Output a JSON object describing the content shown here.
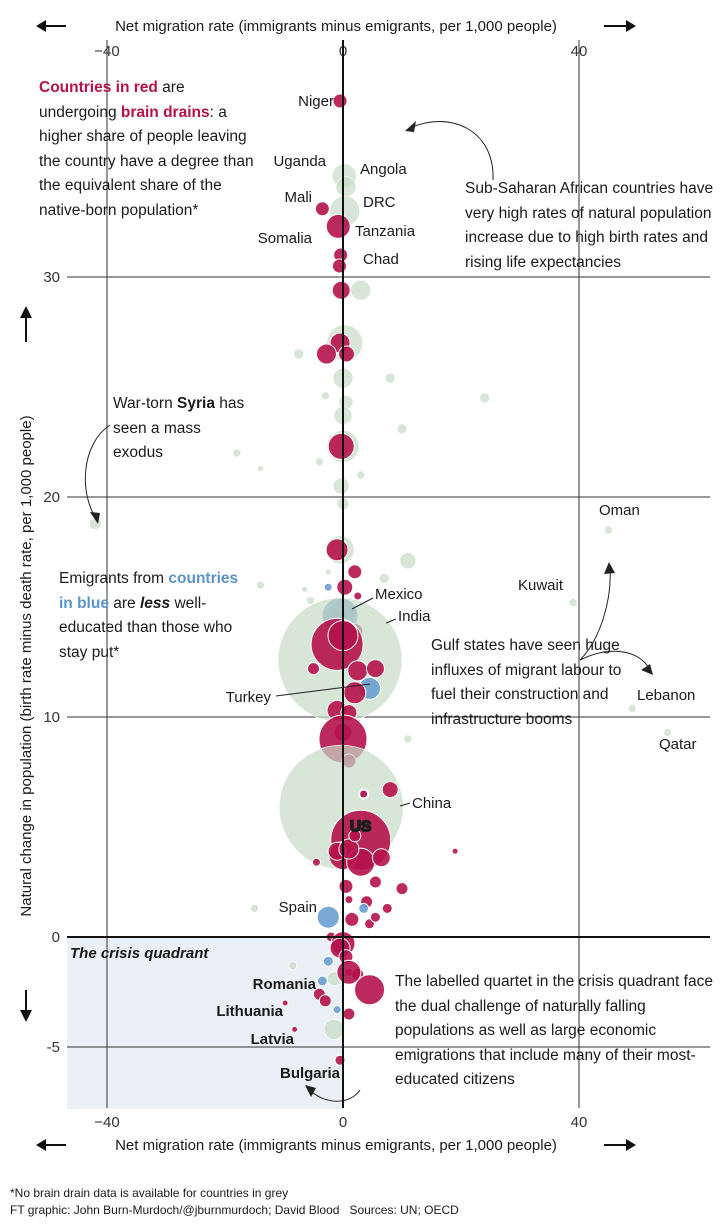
{
  "chart_data": {
    "type": "scatter",
    "xlabel": "Net migration rate (immigrants minus emigrants, per 1,000 people)",
    "ylabel": "Natural change in population (birth rate minus death rate, per 1,000 people)",
    "xlim": [
      -47,
      62
    ],
    "ylim": [
      -7.8,
      37.5
    ],
    "x_ticks": [
      "−40",
      "0",
      "40"
    ],
    "y_ticks": [
      "30",
      "20",
      "10",
      "0",
      "-5"
    ],
    "grid": "major lines at x = -40, 0, 40 and y = -5, 0, 10, 20, 30",
    "crisis_quadrant_label": "The crisis quadrant",
    "legend": {
      "red": "brain drain (higher share of leavers have a degree)",
      "blue": "emigrants less well-educated than those who stay",
      "grey": "no brain drain data"
    },
    "colors": {
      "red": "#b5124a",
      "blue": "#6a9fd0",
      "grey": "#c6dcc6"
    },
    "labelled_points": [
      {
        "name": "Niger",
        "x": -0.5,
        "y": 38.0,
        "group": "red"
      },
      {
        "name": "Uganda",
        "x": 0.0,
        "y": 34.5,
        "group": "grey"
      },
      {
        "name": "Angola",
        "x": 0.5,
        "y": 34.3,
        "group": "grey"
      },
      {
        "name": "Mali",
        "x": -3.5,
        "y": 33.1,
        "group": "red"
      },
      {
        "name": "DRC",
        "x": 0.0,
        "y": 33.0,
        "group": "grey"
      },
      {
        "name": "Tanzania",
        "x": -0.8,
        "y": 32.3,
        "group": "red"
      },
      {
        "name": "Somalia",
        "x": -8.5,
        "y": 31.8,
        "group": "grey"
      },
      {
        "name": "Chad",
        "x": 0.0,
        "y": 31.5,
        "group": "red"
      },
      {
        "name": "Syria",
        "x": -42.0,
        "y": 18.8,
        "group": "grey"
      },
      {
        "name": "Oman",
        "x": 45.0,
        "y": 18.5,
        "group": "grey"
      },
      {
        "name": "Kuwait",
        "x": 39.0,
        "y": 15.2,
        "group": "grey"
      },
      {
        "name": "Mexico",
        "x": -0.5,
        "y": 14.6,
        "group": "blue"
      },
      {
        "name": "India",
        "x": -0.5,
        "y": 12.6,
        "group": "grey"
      },
      {
        "name": "Turkey",
        "x": 4.5,
        "y": 11.3,
        "group": "blue"
      },
      {
        "name": "Lebanon",
        "x": 49.0,
        "y": 10.4,
        "group": "grey"
      },
      {
        "name": "Qatar",
        "x": 55.0,
        "y": 9.3,
        "group": "grey"
      },
      {
        "name": "China",
        "x": -0.3,
        "y": 5.9,
        "group": "grey"
      },
      {
        "name": "US",
        "x": 3.0,
        "y": 4.4,
        "group": "red"
      },
      {
        "name": "Spain",
        "x": -2.5,
        "y": 0.9,
        "group": "blue"
      },
      {
        "name": "Romania",
        "x": -4.0,
        "y": -2.6,
        "group": "red"
      },
      {
        "name": "Lithuania",
        "x": -9.8,
        "y": -3.0,
        "group": "red"
      },
      {
        "name": "Latvia",
        "x": -8.2,
        "y": -4.2,
        "group": "red"
      },
      {
        "name": "Bulgaria",
        "x": -0.5,
        "y": -5.6,
        "group": "red"
      }
    ],
    "points": [
      {
        "x": -0.5,
        "y": 38.0,
        "s": 7,
        "g": "red"
      },
      {
        "x": 0.2,
        "y": 34.6,
        "s": 12,
        "g": "grey"
      },
      {
        "x": 0.5,
        "y": 34.1,
        "s": 10,
        "g": "grey"
      },
      {
        "x": -3.5,
        "y": 33.1,
        "s": 7,
        "g": "red"
      },
      {
        "x": 0.3,
        "y": 33.0,
        "s": 15,
        "g": "grey"
      },
      {
        "x": -0.8,
        "y": 32.3,
        "s": 12,
        "g": "red"
      },
      {
        "x": -8.5,
        "y": 31.8,
        "s": 3,
        "g": "grey"
      },
      {
        "x": -0.4,
        "y": 31.0,
        "s": 7,
        "g": "red"
      },
      {
        "x": -0.6,
        "y": 30.5,
        "s": 7,
        "g": "red"
      },
      {
        "x": 3.0,
        "y": 29.4,
        "s": 10,
        "g": "grey"
      },
      {
        "x": -0.3,
        "y": 29.4,
        "s": 9,
        "g": "red"
      },
      {
        "x": 0.3,
        "y": 27.0,
        "s": 18,
        "g": "grey"
      },
      {
        "x": -0.5,
        "y": 27.0,
        "s": 10,
        "g": "red"
      },
      {
        "x": -2.8,
        "y": 26.5,
        "s": 10,
        "g": "red"
      },
      {
        "x": 0.6,
        "y": 26.5,
        "s": 8,
        "g": "red"
      },
      {
        "x": -7.5,
        "y": 26.5,
        "s": 5,
        "g": "grey"
      },
      {
        "x": 0.0,
        "y": 25.4,
        "s": 10,
        "g": "grey"
      },
      {
        "x": 8.0,
        "y": 25.4,
        "s": 5,
        "g": "grey"
      },
      {
        "x": -3.0,
        "y": 24.6,
        "s": 4,
        "g": "grey"
      },
      {
        "x": 0.5,
        "y": 24.3,
        "s": 7,
        "g": "grey"
      },
      {
        "x": 24.0,
        "y": 24.5,
        "s": 5,
        "g": "grey"
      },
      {
        "x": 0.0,
        "y": 23.7,
        "s": 9,
        "g": "grey"
      },
      {
        "x": 10.0,
        "y": 23.1,
        "s": 5,
        "g": "grey"
      },
      {
        "x": 0.0,
        "y": 22.3,
        "s": 16,
        "g": "grey"
      },
      {
        "x": -0.3,
        "y": 22.3,
        "s": 13,
        "g": "red"
      },
      {
        "x": -4.0,
        "y": 21.6,
        "s": 4,
        "g": "grey"
      },
      {
        "x": -18.0,
        "y": 22.0,
        "s": 4,
        "g": "grey"
      },
      {
        "x": -14.0,
        "y": 21.3,
        "s": 3,
        "g": "grey"
      },
      {
        "x": 3.0,
        "y": 21.0,
        "s": 4,
        "g": "grey"
      },
      {
        "x": -0.3,
        "y": 20.5,
        "s": 8,
        "g": "grey"
      },
      {
        "x": 0.0,
        "y": 19.7,
        "s": 6,
        "g": "grey"
      },
      {
        "x": -42.0,
        "y": 18.8,
        "s": 6,
        "g": "grey"
      },
      {
        "x": 45.0,
        "y": 18.5,
        "s": 4,
        "g": "grey"
      },
      {
        "x": -0.5,
        "y": 17.6,
        "s": 14,
        "g": "grey"
      },
      {
        "x": -1.0,
        "y": 17.6,
        "s": 11,
        "g": "red"
      },
      {
        "x": 11.0,
        "y": 17.1,
        "s": 8,
        "g": "grey"
      },
      {
        "x": 2.0,
        "y": 16.6,
        "s": 7,
        "g": "red"
      },
      {
        "x": -2.5,
        "y": 16.6,
        "s": 3,
        "g": "grey"
      },
      {
        "x": 7.0,
        "y": 16.3,
        "s": 5,
        "g": "grey"
      },
      {
        "x": -14.0,
        "y": 16.0,
        "s": 4,
        "g": "grey"
      },
      {
        "x": -6.5,
        "y": 15.8,
        "s": 3,
        "g": "grey"
      },
      {
        "x": -2.5,
        "y": 15.9,
        "s": 4,
        "g": "blue"
      },
      {
        "x": 0.3,
        "y": 15.9,
        "s": 8,
        "g": "red"
      },
      {
        "x": 2.5,
        "y": 15.5,
        "s": 4,
        "g": "red"
      },
      {
        "x": -5.5,
        "y": 15.3,
        "s": 4,
        "g": "grey"
      },
      {
        "x": 39.0,
        "y": 15.2,
        "s": 4,
        "g": "grey"
      },
      {
        "x": 0.3,
        "y": 14.8,
        "s": 12,
        "g": "red"
      },
      {
        "x": -1.5,
        "y": 14.6,
        "s": 9,
        "g": "red"
      },
      {
        "x": -0.5,
        "y": 14.6,
        "s": 18,
        "g": "blue"
      },
      {
        "x": 2.0,
        "y": 13.9,
        "s": 8,
        "g": "red"
      },
      {
        "x": -0.5,
        "y": 12.6,
        "s": 62,
        "g": "grey"
      },
      {
        "x": -1.0,
        "y": 13.3,
        "s": 26,
        "g": "red"
      },
      {
        "x": 0.0,
        "y": 13.7,
        "s": 15,
        "g": "red"
      },
      {
        "x": 2.5,
        "y": 12.1,
        "s": 10,
        "g": "red"
      },
      {
        "x": 5.5,
        "y": 12.2,
        "s": 9,
        "g": "red"
      },
      {
        "x": -5.0,
        "y": 12.2,
        "s": 6,
        "g": "red"
      },
      {
        "x": 4.5,
        "y": 11.3,
        "s": 11,
        "g": "blue"
      },
      {
        "x": 2.0,
        "y": 11.1,
        "s": 11,
        "g": "red"
      },
      {
        "x": -1.0,
        "y": 10.3,
        "s": 10,
        "g": "red"
      },
      {
        "x": 1.0,
        "y": 10.2,
        "s": 8,
        "g": "red"
      },
      {
        "x": 0.0,
        "y": 9.3,
        "s": 9,
        "g": "red"
      },
      {
        "x": 0.0,
        "y": 9.0,
        "s": 24,
        "g": "red"
      },
      {
        "x": 11.0,
        "y": 9.0,
        "s": 4,
        "g": "grey"
      },
      {
        "x": 1.0,
        "y": 8.0,
        "s": 7,
        "g": "red"
      },
      {
        "x": 49.0,
        "y": 10.4,
        "s": 4,
        "g": "grey"
      },
      {
        "x": 55.0,
        "y": 9.3,
        "s": 4,
        "g": "grey"
      },
      {
        "x": -0.3,
        "y": 5.9,
        "s": 62,
        "g": "grey"
      },
      {
        "x": 3.5,
        "y": 6.5,
        "s": 5,
        "g": "blue"
      },
      {
        "x": 3.5,
        "y": 6.5,
        "s": 4,
        "g": "red"
      },
      {
        "x": 8.0,
        "y": 6.7,
        "s": 8,
        "g": "red"
      },
      {
        "x": 3.0,
        "y": 4.4,
        "s": 30,
        "g": "red"
      },
      {
        "x": 0.0,
        "y": 3.7,
        "s": 14,
        "g": "red"
      },
      {
        "x": 3.0,
        "y": 3.4,
        "s": 14,
        "g": "red"
      },
      {
        "x": -1.0,
        "y": 3.9,
        "s": 9,
        "g": "red"
      },
      {
        "x": 6.5,
        "y": 3.6,
        "s": 9,
        "g": "red"
      },
      {
        "x": -4.5,
        "y": 3.4,
        "s": 4,
        "g": "red"
      },
      {
        "x": 1.0,
        "y": 4.0,
        "s": 10,
        "g": "red"
      },
      {
        "x": 2.0,
        "y": 4.6,
        "s": 6,
        "g": "red"
      },
      {
        "x": 19.0,
        "y": 3.9,
        "s": 3,
        "g": "red"
      },
      {
        "x": 0.5,
        "y": 2.3,
        "s": 7,
        "g": "red"
      },
      {
        "x": 5.5,
        "y": 2.5,
        "s": 6,
        "g": "red"
      },
      {
        "x": 10.0,
        "y": 2.2,
        "s": 6,
        "g": "red"
      },
      {
        "x": 1.0,
        "y": 1.7,
        "s": 4,
        "g": "red"
      },
      {
        "x": 4.0,
        "y": 1.6,
        "s": 6,
        "g": "red"
      },
      {
        "x": 7.5,
        "y": 1.3,
        "s": 5,
        "g": "red"
      },
      {
        "x": 3.5,
        "y": 1.3,
        "s": 5,
        "g": "blue"
      },
      {
        "x": -15.0,
        "y": 1.3,
        "s": 4,
        "g": "grey"
      },
      {
        "x": 4.5,
        "y": 0.6,
        "s": 5,
        "g": "red"
      },
      {
        "x": -2.5,
        "y": 0.9,
        "s": 11,
        "g": "blue"
      },
      {
        "x": 1.5,
        "y": 0.8,
        "s": 7,
        "g": "red"
      },
      {
        "x": 5.5,
        "y": 0.9,
        "s": 5,
        "g": "red"
      },
      {
        "x": -2.0,
        "y": 0.0,
        "s": 5,
        "g": "red"
      },
      {
        "x": 0.0,
        "y": -0.3,
        "s": 12,
        "g": "red"
      },
      {
        "x": -0.5,
        "y": -0.5,
        "s": 10,
        "g": "red"
      },
      {
        "x": 0.5,
        "y": -0.9,
        "s": 7,
        "g": "red"
      },
      {
        "x": 1.0,
        "y": -1.6,
        "s": 4,
        "g": "red"
      },
      {
        "x": -2.5,
        "y": -1.1,
        "s": 5,
        "g": "blue"
      },
      {
        "x": -1.5,
        "y": -1.9,
        "s": 7,
        "g": "grey"
      },
      {
        "x": 2.5,
        "y": -1.7,
        "s": 6,
        "g": "red"
      },
      {
        "x": 1.0,
        "y": -1.6,
        "s": 12,
        "g": "red"
      },
      {
        "x": -3.5,
        "y": -2.0,
        "s": 5,
        "g": "blue"
      },
      {
        "x": -8.5,
        "y": -1.3,
        "s": 4,
        "g": "grey"
      },
      {
        "x": -4.0,
        "y": -2.6,
        "s": 6,
        "g": "red"
      },
      {
        "x": 4.5,
        "y": -2.4,
        "s": 15,
        "g": "red"
      },
      {
        "x": -3.0,
        "y": -2.9,
        "s": 6,
        "g": "red"
      },
      {
        "x": -9.8,
        "y": -3.0,
        "s": 3,
        "g": "red"
      },
      {
        "x": -1.0,
        "y": -3.3,
        "s": 4,
        "g": "blue"
      },
      {
        "x": 1.0,
        "y": -3.5,
        "s": 6,
        "g": "red"
      },
      {
        "x": -8.2,
        "y": -4.2,
        "s": 3,
        "g": "red"
      },
      {
        "x": -1.5,
        "y": -4.2,
        "s": 10,
        "g": "grey"
      },
      {
        "x": -0.5,
        "y": -5.6,
        "s": 5,
        "g": "red"
      }
    ]
  },
  "axis": {
    "x_top_label": "Net migration rate (immigrants minus emigrants, per 1,000 people)",
    "x_bottom_label": "Net migration rate (immigrants minus emigrants, per 1,000 people)",
    "y_label": "Natural change in population (birth rate minus death rate, per 1,000 people)"
  },
  "annotations": {
    "brain_drain": {
      "red_phrase": "Countries in red",
      "t1": " are undergoing ",
      "bold": "brain drains",
      "t2": ": a higher share of people leaving the country have a degree than the equivalent share of the native-born population*"
    },
    "subsaharan": "Sub-Saharan African countries have very high rates of natural population increase due to high birth rates and rising life expectancies",
    "syria": {
      "t1": "War-torn ",
      "bold": "Syria",
      "t2": " has seen a mass exodus"
    },
    "emigrants": {
      "t1": "Emigrants from ",
      "blue_phrase": "countries in blue",
      "t2": " are ",
      "italic": "less",
      "t3": " well-educated than those who stay put*"
    },
    "gulf": "Gulf states have seen huge influxes of migrant labour to fuel their construction and infrastructure booms",
    "crisis": "The labelled quartet in the crisis quadrant face the dual challenge of naturally falling populations as well as large economic emigrations that include many of their most-educated citizens"
  },
  "footer": {
    "note": "*No brain drain data is available for countries in grey",
    "credit": "FT graphic: John Burn-Murdoch/@jburnmurdoch; David Blood   Sources: UN; OECD"
  }
}
